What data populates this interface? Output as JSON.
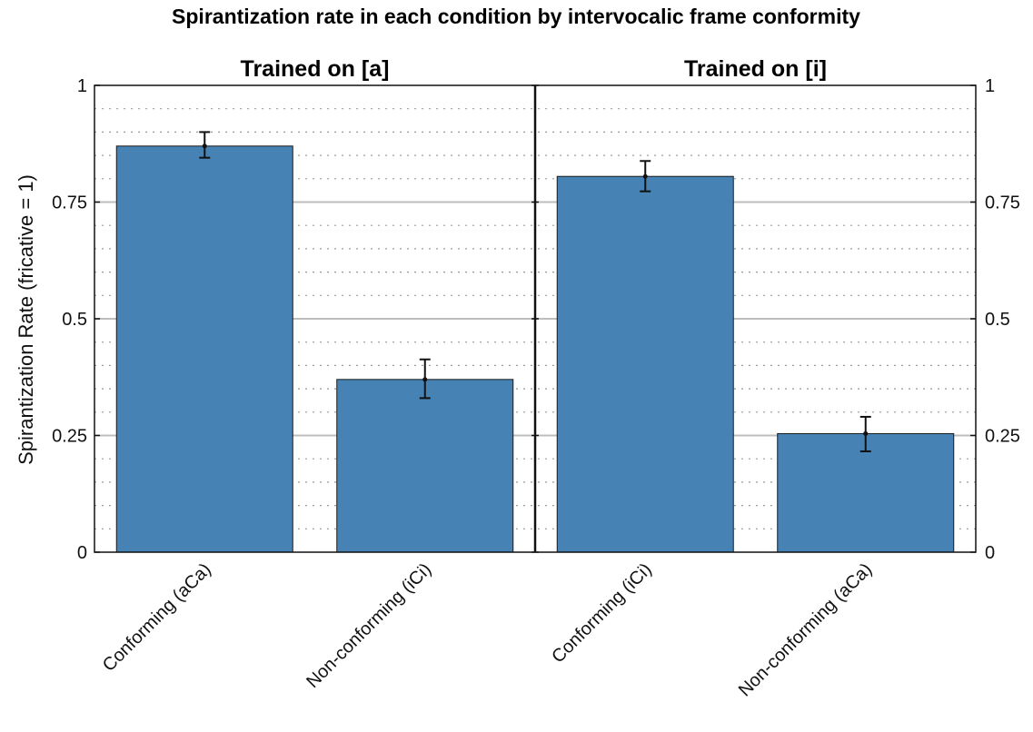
{
  "chart_data": {
    "type": "bar",
    "title": "Spirantization rate in each condition by intervocalic frame conformity",
    "ylabel": "Spirantization Rate (fricative = 1)",
    "xlabel": "",
    "ylim": [
      0,
      1
    ],
    "yticks": [
      0,
      0.25,
      0.5,
      0.75,
      1
    ],
    "ytick_labels": [
      "0",
      "0.25",
      "0.5",
      "0.75",
      "1"
    ],
    "grid": "major solid, minor dotted",
    "bar_color": "#4682b4",
    "panels": [
      {
        "title": "Trained on [a]",
        "categories": [
          "Conforming (aCa)",
          "Non-conforming (iCi)"
        ],
        "values": [
          0.87,
          0.37
        ],
        "error_low": [
          0.845,
          0.33
        ],
        "error_high": [
          0.9,
          0.413
        ]
      },
      {
        "title": "Trained on [i]",
        "categories": [
          "Conforming (iCi)",
          "Non-conforming (aCa)"
        ],
        "values": [
          0.805,
          0.254
        ],
        "error_low": [
          0.773,
          0.216
        ],
        "error_high": [
          0.838,
          0.29
        ]
      }
    ]
  }
}
